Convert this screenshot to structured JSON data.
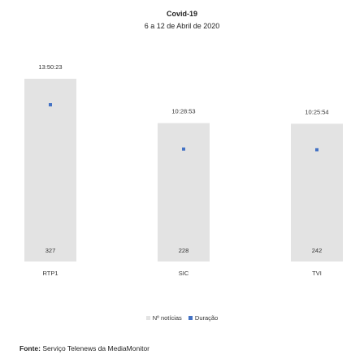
{
  "chart_data": {
    "type": "bar",
    "title": "Covid-19",
    "subtitle": "6 a 12 de Abril de 2020",
    "categories": [
      "RTP1",
      "SIC",
      "TVI"
    ],
    "series": [
      {
        "name": "Nº notícias",
        "values": [
          327,
          228,
          242
        ],
        "color": "#e3e3e3"
      },
      {
        "name": "Duração",
        "values": [
          "13:50:23",
          "10:28:53",
          "10:25:54"
        ],
        "values_seconds": [
          49823,
          37733,
          37554
        ],
        "color": "#4472c4"
      }
    ],
    "legend_position": "bottom",
    "grid": false
  },
  "source": {
    "label": "Fonte:",
    "text": "Serviço Telenews da MediaMonitor"
  }
}
